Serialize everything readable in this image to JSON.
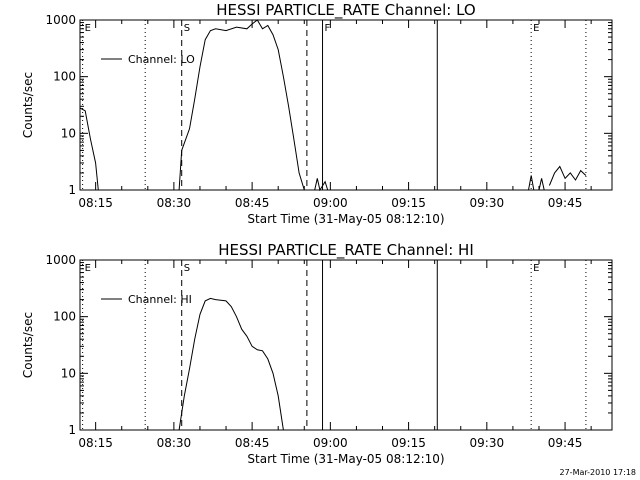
{
  "colors": {
    "background": "#ffffff",
    "foreground": "#000000"
  },
  "footer": {
    "timestamp": "27-Mar-2010 17:18"
  },
  "chart_data": [
    {
      "type": "line",
      "title": "HESSI PARTICLE_RATE Channel: LO",
      "xlabel": "Start Time (31-May-05 08:12:10)",
      "ylabel": "Counts/sec",
      "legend": {
        "label": "Channel: LO",
        "placement": "top-left"
      },
      "y_scale": "log",
      "ylim": [
        1,
        1000
      ],
      "y_ticks": [
        {
          "value": 1,
          "label": "1"
        },
        {
          "value": 10,
          "label": "10"
        },
        {
          "value": 100,
          "label": "100"
        },
        {
          "value": 1000,
          "label": "1000"
        }
      ],
      "xlim": [
        "08:12",
        "09:54"
      ],
      "x_ticks": [
        "08:15",
        "08:30",
        "08:45",
        "09:00",
        "09:15",
        "09:30",
        "09:45"
      ],
      "markers": [
        {
          "time": "08:12.5",
          "label": "E",
          "style": "dotted"
        },
        {
          "time": "08:24.5",
          "label": "",
          "style": "dotted"
        },
        {
          "time": "08:31.5",
          "label": "S",
          "style": "dashed"
        },
        {
          "time": "08:55.5",
          "label": "",
          "style": "dashed"
        },
        {
          "time": "08:58.5",
          "label": "F",
          "style": "solid"
        },
        {
          "time": "09:20.5",
          "label": "",
          "style": "solid"
        },
        {
          "time": "09:38.5",
          "label": "E",
          "style": "dotted"
        },
        {
          "time": "09:49",
          "label": "",
          "style": "dotted"
        }
      ],
      "series": [
        {
          "name": "Channel: LO",
          "segments": [
            [
              [
                "08:12",
                28
              ],
              [
                "08:13",
                25
              ],
              [
                "08:14",
                8
              ],
              [
                "08:15",
                3
              ],
              [
                "08:15.5",
                1
              ]
            ],
            [
              [
                "08:31",
                1
              ],
              [
                "08:31.5",
                5
              ],
              [
                "08:33",
                12
              ],
              [
                "08:34",
                40
              ],
              [
                "08:35",
                150
              ],
              [
                "08:36",
                450
              ],
              [
                "08:37",
                650
              ],
              [
                "08:38",
                700
              ],
              [
                "08:40",
                650
              ],
              [
                "08:42",
                750
              ],
              [
                "08:44",
                700
              ],
              [
                "08:45",
                850
              ],
              [
                "08:46",
                1000
              ],
              [
                "08:47",
                700
              ],
              [
                "08:48",
                800
              ],
              [
                "08:49",
                550
              ],
              [
                "08:50",
                300
              ],
              [
                "08:51",
                100
              ],
              [
                "08:52",
                30
              ],
              [
                "08:53",
                8
              ],
              [
                "08:54",
                2
              ],
              [
                "08:55",
                1
              ]
            ],
            [
              [
                "08:57",
                1
              ],
              [
                "08:57.5",
                1.6
              ],
              [
                "08:58",
                1
              ],
              [
                "08:59",
                1.4
              ],
              [
                "08:59.5",
                1
              ]
            ],
            [
              [
                "09:38",
                1
              ],
              [
                "09:38.5",
                1.8
              ],
              [
                "09:39",
                1
              ]
            ],
            [
              [
                "09:40",
                1
              ],
              [
                "09:40.5",
                1.6
              ],
              [
                "09:41",
                1
              ]
            ],
            [
              [
                "09:42",
                1.2
              ],
              [
                "09:43",
                2
              ],
              [
                "09:44",
                2.6
              ],
              [
                "09:45",
                1.6
              ],
              [
                "09:46",
                2
              ],
              [
                "09:47",
                1.5
              ],
              [
                "09:48",
                2.2
              ],
              [
                "09:49",
                1.8
              ]
            ]
          ]
        }
      ]
    },
    {
      "type": "line",
      "title": "HESSI PARTICLE_RATE Channel: HI",
      "xlabel": "Start Time (31-May-05 08:12:10)",
      "ylabel": "Counts/sec",
      "legend": {
        "label": "Channel: HI",
        "placement": "top-left"
      },
      "y_scale": "log",
      "ylim": [
        1,
        1000
      ],
      "y_ticks": [
        {
          "value": 1,
          "label": "1"
        },
        {
          "value": 10,
          "label": "10"
        },
        {
          "value": 100,
          "label": "100"
        },
        {
          "value": 1000,
          "label": "1000"
        }
      ],
      "xlim": [
        "08:12",
        "09:54"
      ],
      "x_ticks": [
        "08:15",
        "08:30",
        "08:45",
        "09:00",
        "09:15",
        "09:30",
        "09:45"
      ],
      "markers": [
        {
          "time": "08:12.5",
          "label": "E",
          "style": "dotted"
        },
        {
          "time": "08:24.5",
          "label": "",
          "style": "dotted"
        },
        {
          "time": "08:31.5",
          "label": "S",
          "style": "dashed"
        },
        {
          "time": "08:55.5",
          "label": "",
          "style": "dashed"
        },
        {
          "time": "08:58.5",
          "label": "",
          "style": "solid"
        },
        {
          "time": "09:20.5",
          "label": "",
          "style": "solid"
        },
        {
          "time": "09:38.5",
          "label": "E",
          "style": "dotted"
        },
        {
          "time": "09:49",
          "label": "",
          "style": "dotted"
        }
      ],
      "series": [
        {
          "name": "Channel: HI",
          "segments": [
            [
              [
                "08:31",
                1
              ],
              [
                "08:32",
                4
              ],
              [
                "08:33",
                12
              ],
              [
                "08:34",
                40
              ],
              [
                "08:35",
                110
              ],
              [
                "08:36",
                190
              ],
              [
                "08:37",
                210
              ],
              [
                "08:38",
                200
              ],
              [
                "08:40",
                190
              ],
              [
                "08:41",
                150
              ],
              [
                "08:42",
                100
              ],
              [
                "08:43",
                60
              ],
              [
                "08:44",
                45
              ],
              [
                "08:45",
                30
              ],
              [
                "08:46",
                26
              ],
              [
                "08:47",
                25
              ],
              [
                "08:48",
                18
              ],
              [
                "08:49",
                10
              ],
              [
                "08:50",
                4
              ],
              [
                "08:51",
                1
              ]
            ]
          ]
        }
      ]
    }
  ]
}
